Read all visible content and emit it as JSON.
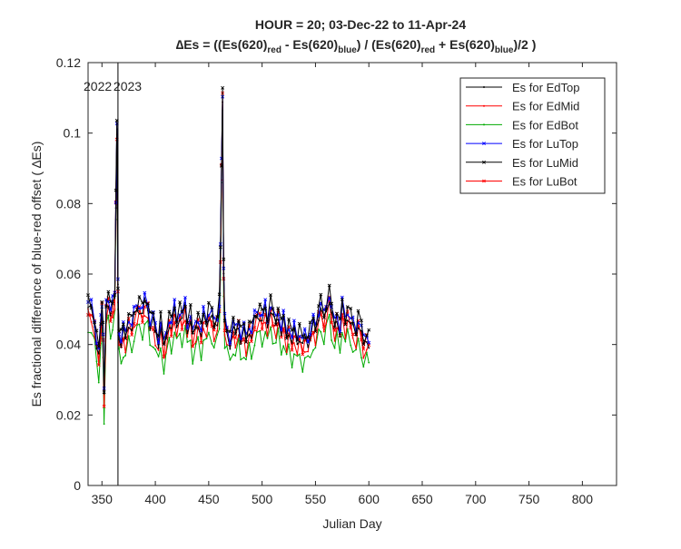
{
  "chart_data": {
    "type": "line",
    "title_line1": "HOUR = 20; 03-Dec-22 to 11-Apr-24",
    "title_line2": {
      "prefix": "∆Es = ((Es(620)",
      "sub_red": "red",
      "mid1": " - Es(620)",
      "sub_blue": "blue",
      "mid2": ") / (Es(620)",
      "sub_red2": "red",
      "mid3": " + Es(620)",
      "sub_blue2": "blue",
      "suffix": ")/2  )"
    },
    "xlabel": "Julian Day",
    "ylabel": "Es fractional difference of blue-red offset (  ∆Es)",
    "xlim": [
      337,
      832
    ],
    "ylim": [
      0,
      0.12
    ],
    "xticks": [
      "350",
      "400",
      "450",
      "500",
      "550",
      "600",
      "650",
      "700",
      "750",
      "800"
    ],
    "yticks": [
      "0",
      "0.02",
      "0.04",
      "0.06",
      "0.08",
      "0.1",
      "0.12"
    ],
    "annotations": [
      {
        "text": "2022",
        "x": 346
      },
      {
        "text": "2023",
        "x": 374
      }
    ],
    "year_boundary_x": 365,
    "legend_position": "top-right",
    "grid": false,
    "series": [
      {
        "name": "Es for EdTop",
        "color": "#000000",
        "marker": "dot",
        "offset": 0.0005
      },
      {
        "name": "Es for EdMid",
        "color": "#ff0000",
        "marker": "dot",
        "offset": -0.0015
      },
      {
        "name": "Es for EdBot",
        "color": "#00aa00",
        "marker": "dot",
        "offset": -0.005
      },
      {
        "name": "Es for LuTop",
        "color": "#0000ff",
        "marker": "x",
        "offset": 0.002
      },
      {
        "name": "Es for LuMid",
        "color": "#000000",
        "marker": "x",
        "offset": 0.0025
      },
      {
        "name": "Es for LuBot",
        "color": "#ff0000",
        "marker": "x",
        "offset": 0.0
      }
    ],
    "base_profile": {
      "x": [
        337,
        340,
        343,
        345,
        347,
        349,
        350,
        351,
        352,
        354,
        356,
        358,
        360,
        362,
        363,
        364,
        365,
        366,
        368,
        370,
        372,
        375,
        378,
        380,
        383,
        385,
        388,
        390,
        393,
        395,
        398,
        400,
        403,
        405,
        408,
        410,
        413,
        415,
        418,
        420,
        423,
        425,
        428,
        430,
        433,
        435,
        438,
        440,
        443,
        445,
        448,
        450,
        453,
        455,
        458,
        460,
        461,
        462,
        463,
        464,
        465,
        467,
        470,
        473,
        475,
        478,
        480,
        483,
        485,
        488,
        490,
        493,
        495,
        498,
        500,
        503,
        505,
        508,
        510,
        513,
        515,
        518,
        520,
        523,
        525,
        528,
        530,
        533,
        535,
        538,
        540,
        543,
        545,
        548,
        550,
        553,
        555,
        558,
        560,
        563,
        565,
        568,
        570,
        573,
        575,
        578,
        580,
        583,
        585,
        588,
        590,
        593,
        595,
        598,
        600
      ],
      "y": [
        0.05,
        0.049,
        0.045,
        0.04,
        0.036,
        0.045,
        0.05,
        0.042,
        0.024,
        0.05,
        0.052,
        0.048,
        0.05,
        0.053,
        0.08,
        0.1,
        0.055,
        0.042,
        0.04,
        0.043,
        0.041,
        0.046,
        0.044,
        0.047,
        0.049,
        0.05,
        0.048,
        0.051,
        0.05,
        0.045,
        0.046,
        0.043,
        0.04,
        0.045,
        0.038,
        0.041,
        0.046,
        0.044,
        0.049,
        0.045,
        0.048,
        0.046,
        0.05,
        0.044,
        0.047,
        0.041,
        0.044,
        0.046,
        0.042,
        0.047,
        0.045,
        0.048,
        0.047,
        0.044,
        0.046,
        0.05,
        0.065,
        0.09,
        0.11,
        0.06,
        0.045,
        0.043,
        0.04,
        0.044,
        0.042,
        0.045,
        0.041,
        0.043,
        0.04,
        0.044,
        0.042,
        0.046,
        0.047,
        0.048,
        0.046,
        0.049,
        0.045,
        0.05,
        0.047,
        0.045,
        0.048,
        0.043,
        0.046,
        0.041,
        0.044,
        0.04,
        0.043,
        0.04,
        0.042,
        0.039,
        0.041,
        0.04,
        0.042,
        0.045,
        0.043,
        0.048,
        0.05,
        0.046,
        0.049,
        0.053,
        0.048,
        0.044,
        0.047,
        0.043,
        0.05,
        0.045,
        0.048,
        0.046,
        0.044,
        0.042,
        0.046,
        0.043,
        0.039,
        0.041,
        0.04
      ]
    }
  }
}
